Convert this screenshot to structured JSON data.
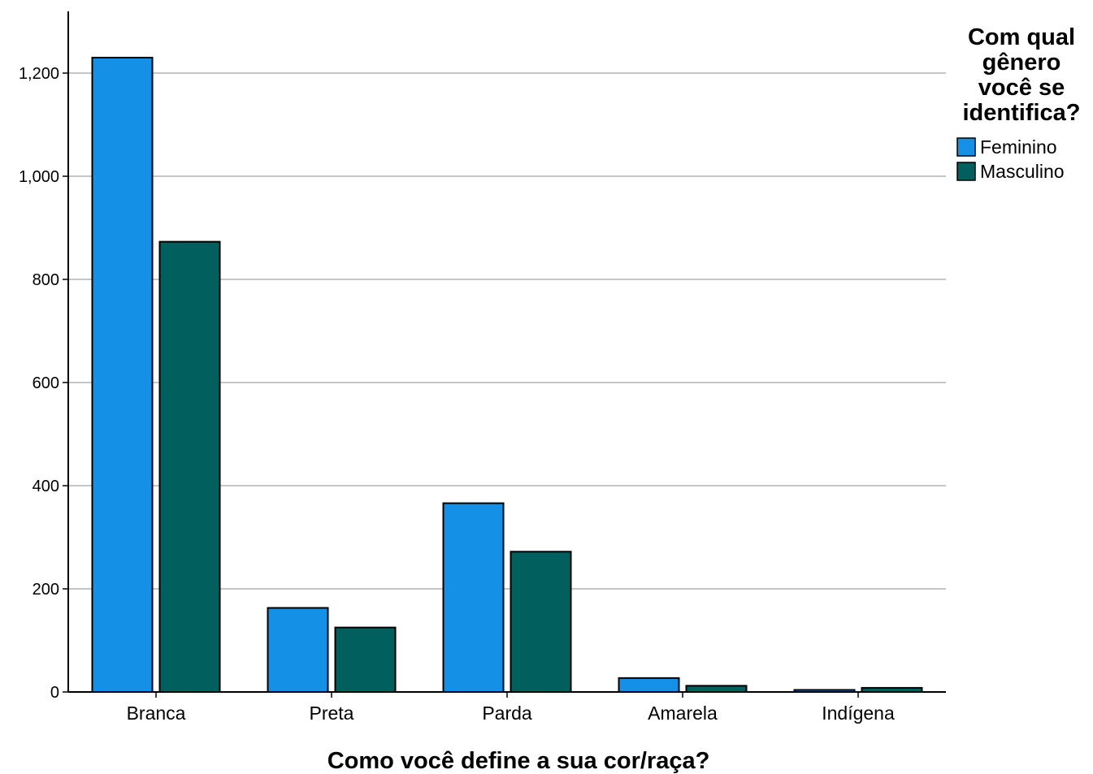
{
  "chart_data": {
    "type": "bar",
    "xlabel": "Como você define a sua cor/raça?",
    "ylabel": "",
    "categories": [
      "Branca",
      "Preta",
      "Parda",
      "Amarela",
      "Indígena"
    ],
    "series": [
      {
        "name": "Feminino",
        "color": "#1490e6",
        "values": [
          1230,
          163,
          366,
          27,
          4
        ]
      },
      {
        "name": "Masculino",
        "color": "#015f5e",
        "values": [
          873,
          125,
          272,
          12,
          8
        ]
      }
    ],
    "ylim": [
      0,
      1300
    ],
    "yticks": [
      0,
      200,
      400,
      600,
      800,
      1000,
      1200
    ],
    "ytick_labels": [
      "0",
      "200",
      "400",
      "600",
      "800",
      "1,000",
      "1,200"
    ],
    "grid": true,
    "legend": {
      "title_lines": [
        "Com qual",
        "gênero",
        "você se",
        "identifica?"
      ],
      "placement": "right"
    }
  }
}
